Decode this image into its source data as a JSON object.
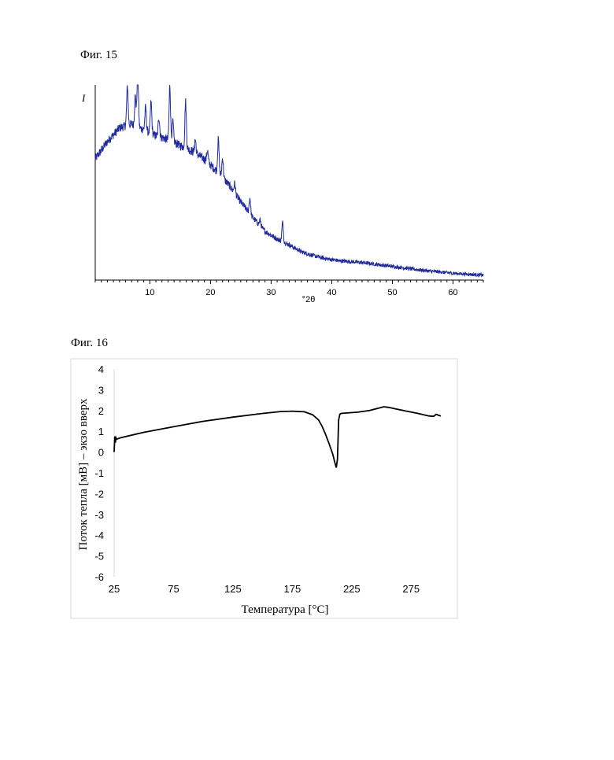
{
  "fig15": {
    "label": "Фиг. 15",
    "chart_data": {
      "type": "line",
      "title": "",
      "ylabel": "I",
      "xlabel": "°2θ",
      "xlim": [
        1,
        65
      ],
      "xticks": [
        10,
        20,
        30,
        40,
        50,
        60
      ],
      "color": "#1f2aa6",
      "baseline": [
        [
          1,
          0.62
        ],
        [
          3,
          0.71
        ],
        [
          5,
          0.78
        ],
        [
          7,
          0.8
        ],
        [
          9,
          0.77
        ],
        [
          11,
          0.74
        ],
        [
          13,
          0.72
        ],
        [
          15,
          0.69
        ],
        [
          17,
          0.66
        ],
        [
          19,
          0.62
        ],
        [
          21,
          0.56
        ],
        [
          23,
          0.49
        ],
        [
          25,
          0.4
        ],
        [
          27,
          0.32
        ],
        [
          29,
          0.25
        ],
        [
          31,
          0.21
        ],
        [
          33,
          0.18
        ],
        [
          35,
          0.145
        ],
        [
          37,
          0.125
        ],
        [
          39,
          0.11
        ],
        [
          41,
          0.1
        ],
        [
          45,
          0.09
        ],
        [
          50,
          0.07
        ],
        [
          55,
          0.05
        ],
        [
          60,
          0.035
        ],
        [
          65,
          0.025
        ]
      ],
      "peaks": [
        [
          6.3,
          0.2
        ],
        [
          7.6,
          0.15
        ],
        [
          8.0,
          0.29
        ],
        [
          9.3,
          0.12
        ],
        [
          10.2,
          0.16
        ],
        [
          11.5,
          0.1
        ],
        [
          13.3,
          0.28
        ],
        [
          13.8,
          0.1
        ],
        [
          15.9,
          0.24
        ],
        [
          17.5,
          0.07
        ],
        [
          19.5,
          0.06
        ],
        [
          21.3,
          0.17
        ],
        [
          22.0,
          0.1
        ],
        [
          24.0,
          0.05
        ],
        [
          26.5,
          0.08
        ],
        [
          28.2,
          0.03
        ],
        [
          31.9,
          0.1
        ]
      ],
      "noise": 0.045,
      "points": 1600
    }
  },
  "fig16": {
    "label": "Фиг. 16",
    "chart_data": {
      "type": "line",
      "title": "",
      "xlabel": "Температура [°C]",
      "ylabel": "Поток тепла [мВ] – экзо вверх",
      "xlim": [
        25,
        300
      ],
      "ylim": [
        -6,
        4
      ],
      "xticks": [
        25,
        75,
        125,
        175,
        225,
        275
      ],
      "yticks": [
        4,
        3,
        2,
        1,
        0,
        -1,
        -2,
        -3,
        -4,
        -5,
        -6
      ],
      "color": "#000000",
      "series": [
        {
          "x": [
            25,
            25.5,
            26,
            26.5,
            27,
            30,
            40,
            50,
            75,
            100,
            125,
            150,
            165,
            175,
            185,
            192,
            197,
            200,
            203,
            206,
            209,
            211,
            212,
            213,
            214,
            215,
            216,
            220,
            230,
            240,
            248,
            252,
            256,
            262,
            270,
            280,
            290,
            294,
            296,
            297,
            298,
            300
          ],
          "y": [
            0.0,
            0.75,
            0.45,
            0.68,
            0.62,
            0.68,
            0.82,
            0.95,
            1.22,
            1.48,
            1.68,
            1.86,
            1.95,
            1.97,
            1.94,
            1.8,
            1.55,
            1.25,
            0.85,
            0.4,
            -0.1,
            -0.55,
            -0.75,
            -0.35,
            1.55,
            1.82,
            1.86,
            1.88,
            1.92,
            2.0,
            2.12,
            2.18,
            2.15,
            2.08,
            1.98,
            1.87,
            1.74,
            1.72,
            1.82,
            1.8,
            1.77,
            1.74
          ]
        }
      ]
    }
  }
}
